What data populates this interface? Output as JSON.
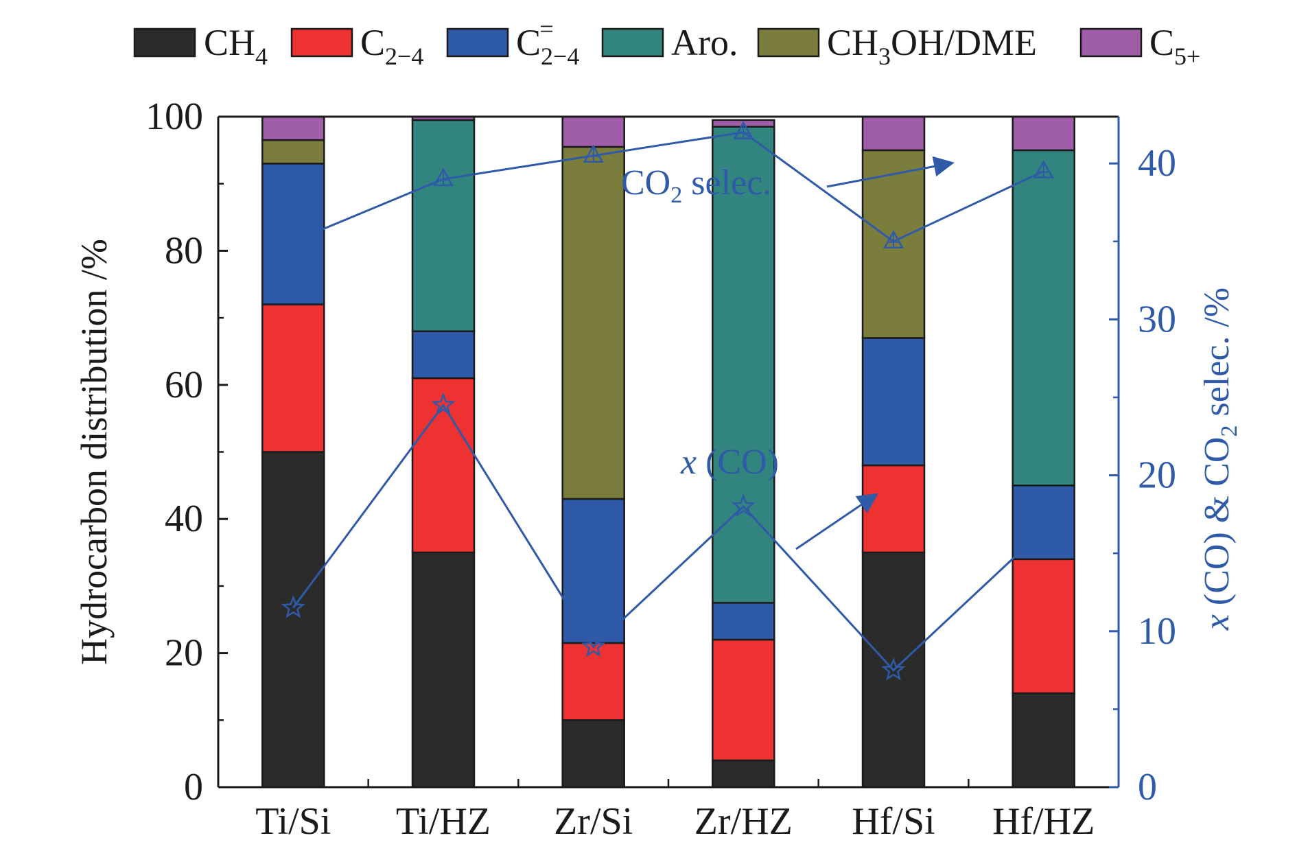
{
  "chart_data": {
    "type": "bar",
    "stacked": true,
    "categories": [
      "Ti/Si",
      "Ti/HZ",
      "Zr/Si",
      "Zr/HZ",
      "Hf/Si",
      "Hf/HZ"
    ],
    "ylabel": "Hydrocarbon distribution /%",
    "ylim": [
      0,
      100
    ],
    "yticks": [
      "0",
      "20",
      "40",
      "60",
      "80",
      "100"
    ],
    "y2label": {
      "x": "x",
      "mid1": " (CO) & CO",
      "sub": "2",
      "mid2": " selec. /%"
    },
    "y2lim": [
      0,
      43
    ],
    "y2ticks": [
      "0",
      "10",
      "20",
      "30",
      "40"
    ],
    "legend_position": "top",
    "series": [
      {
        "name": {
          "main": "CH",
          "sub": "4",
          "sup": ""
        },
        "color": "#2b2b2b",
        "values": [
          50,
          35,
          10,
          4,
          35,
          14
        ]
      },
      {
        "name": {
          "main": "C",
          "sub": "2−4",
          "sup": ""
        },
        "color": "#ee3232",
        "values": [
          22,
          26,
          11.5,
          18,
          13,
          20
        ]
      },
      {
        "name": {
          "main": "C",
          "sub": "2−4",
          "sup": "="
        },
        "color": "#2f5aa8",
        "values": [
          21,
          7,
          21.5,
          5.5,
          19,
          11
        ]
      },
      {
        "name": {
          "main": "Aro.",
          "sub": "",
          "sup": ""
        },
        "color": "#32847e",
        "values": [
          0,
          31.5,
          0,
          71,
          0,
          50
        ]
      },
      {
        "name": {
          "main": "CH",
          "sub": "3",
          "rest": "OH/DME",
          "sup": ""
        },
        "color": "#7b7d3d",
        "values": [
          3.5,
          0,
          52.5,
          0,
          28,
          0
        ]
      },
      {
        "name": {
          "main": "C",
          "sub": "5+",
          "sup": ""
        },
        "color": "#a15ea8",
        "values": [
          3.5,
          0.5,
          4.5,
          1,
          5,
          5
        ]
      }
    ],
    "line_series": [
      {
        "name": "CO2 selec.",
        "marker": "triangle",
        "color": "#2f5aa8",
        "values": [
          35,
          39,
          40.5,
          42,
          35,
          39.5
        ]
      },
      {
        "name": "x(CO)",
        "marker": "star",
        "color": "#2f5aa8",
        "values": [
          11.5,
          24.5,
          9,
          18,
          7.5,
          16.5
        ]
      }
    ],
    "annotations": {
      "co2": {
        "main": "CO",
        "sub": "2",
        "rest": " selec."
      },
      "xco": {
        "italic": "x",
        "rest": " (CO)"
      }
    }
  }
}
